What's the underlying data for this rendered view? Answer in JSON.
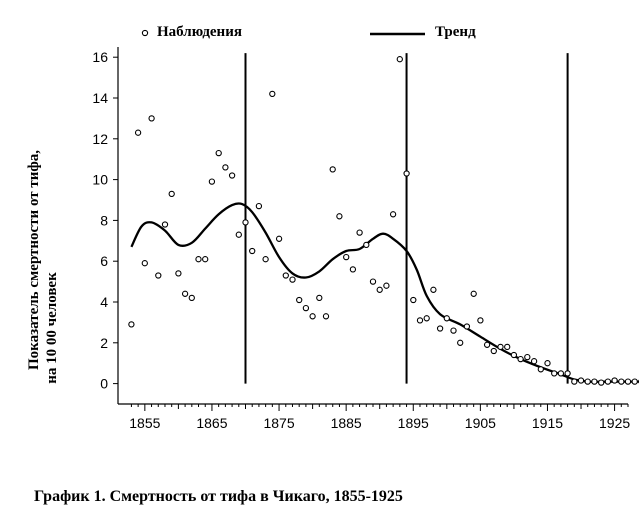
{
  "caption": "График 1. Смертность от тифа в Чикаго, 1855-1925",
  "chart_data": {
    "type": "scatter",
    "title": "",
    "xlabel": "",
    "ylabel_lines": [
      "Показатель смертности от тифа,",
      "на 10 00 человек"
    ],
    "xlim": [
      1851,
      1927
    ],
    "ylim": [
      -1,
      16.5
    ],
    "x_ticks": [
      1855,
      1865,
      1875,
      1885,
      1895,
      1905,
      1915,
      1925
    ],
    "y_ticks": [
      0,
      2,
      4,
      6,
      8,
      10,
      12,
      14,
      16
    ],
    "grid": false,
    "legend": {
      "placement": "top",
      "entries": [
        {
          "marker": "circle",
          "label": "Наблюдения"
        },
        {
          "marker": "line",
          "label": "Тренд"
        }
      ]
    },
    "vertical_lines_x": [
      1870,
      1894,
      1918
    ],
    "series": [
      {
        "name": "Наблюдения",
        "kind": "points",
        "points": [
          [
            1853,
            2.9
          ],
          [
            1854,
            12.3
          ],
          [
            1855,
            5.9
          ],
          [
            1856,
            13.0
          ],
          [
            1857,
            5.3
          ],
          [
            1858,
            7.8
          ],
          [
            1859,
            9.3
          ],
          [
            1860,
            5.4
          ],
          [
            1861,
            4.4
          ],
          [
            1862,
            4.2
          ],
          [
            1863,
            6.1
          ],
          [
            1864,
            6.1
          ],
          [
            1865,
            9.9
          ],
          [
            1866,
            11.3
          ],
          [
            1867,
            10.6
          ],
          [
            1868,
            10.2
          ],
          [
            1869,
            7.3
          ],
          [
            1870,
            7.9
          ],
          [
            1871,
            6.5
          ],
          [
            1872,
            8.7
          ],
          [
            1873,
            6.1
          ],
          [
            1874,
            14.2
          ],
          [
            1875,
            7.1
          ],
          [
            1876,
            5.3
          ],
          [
            1877,
            5.1
          ],
          [
            1878,
            4.1
          ],
          [
            1879,
            3.7
          ],
          [
            1880,
            3.3
          ],
          [
            1881,
            4.2
          ],
          [
            1882,
            3.3
          ],
          [
            1883,
            10.5
          ],
          [
            1884,
            8.2
          ],
          [
            1885,
            6.2
          ],
          [
            1886,
            5.6
          ],
          [
            1887,
            7.4
          ],
          [
            1888,
            6.8
          ],
          [
            1889,
            5.0
          ],
          [
            1890,
            4.6
          ],
          [
            1891,
            4.8
          ],
          [
            1892,
            8.3
          ],
          [
            1893,
            15.9
          ],
          [
            1894,
            10.3
          ],
          [
            1895,
            4.1
          ],
          [
            1896,
            3.1
          ],
          [
            1897,
            3.2
          ],
          [
            1898,
            4.6
          ],
          [
            1899,
            2.7
          ],
          [
            1900,
            3.2
          ],
          [
            1901,
            2.6
          ],
          [
            1902,
            2.0
          ],
          [
            1903,
            2.8
          ],
          [
            1904,
            4.4
          ],
          [
            1905,
            3.1
          ],
          [
            1906,
            1.9
          ],
          [
            1907,
            1.6
          ],
          [
            1908,
            1.8
          ],
          [
            1909,
            1.8
          ],
          [
            1910,
            1.4
          ],
          [
            1911,
            1.2
          ],
          [
            1912,
            1.3
          ],
          [
            1913,
            1.1
          ],
          [
            1914,
            0.7
          ],
          [
            1915,
            1.0
          ],
          [
            1916,
            0.5
          ],
          [
            1917,
            0.5
          ],
          [
            1918,
            0.5
          ],
          [
            1919,
            0.1
          ],
          [
            1920,
            0.15
          ],
          [
            1921,
            0.1
          ],
          [
            1922,
            0.1
          ],
          [
            1923,
            0.05
          ],
          [
            1924,
            0.1
          ],
          [
            1925,
            0.15
          ],
          [
            1926,
            0.1
          ],
          [
            1927,
            0.1
          ],
          [
            1928,
            0.1
          ],
          [
            1929,
            0.1
          ]
        ]
      },
      {
        "name": "Тренд",
        "kind": "line",
        "points": [
          [
            1853,
            6.7
          ],
          [
            1854.5,
            7.7
          ],
          [
            1856,
            7.9
          ],
          [
            1858,
            7.5
          ],
          [
            1860,
            6.8
          ],
          [
            1862,
            6.9
          ],
          [
            1864,
            7.6
          ],
          [
            1866,
            8.3
          ],
          [
            1868,
            8.75
          ],
          [
            1869.5,
            8.8
          ],
          [
            1871,
            8.4
          ],
          [
            1873,
            7.4
          ],
          [
            1875,
            6.2
          ],
          [
            1877,
            5.4
          ],
          [
            1879,
            5.2
          ],
          [
            1881,
            5.5
          ],
          [
            1883,
            6.1
          ],
          [
            1885,
            6.5
          ],
          [
            1887,
            6.6
          ],
          [
            1889,
            7.1
          ],
          [
            1890.5,
            7.35
          ],
          [
            1892,
            7.1
          ],
          [
            1894,
            6.5
          ],
          [
            1895.5,
            5.6
          ],
          [
            1897,
            4.3
          ],
          [
            1899,
            3.4
          ],
          [
            1902,
            2.9
          ],
          [
            1905,
            2.3
          ],
          [
            1908,
            1.7
          ],
          [
            1911,
            1.2
          ],
          [
            1914,
            0.8
          ],
          [
            1917,
            0.45
          ],
          [
            1919,
            0.2
          ],
          [
            1921,
            0.1
          ],
          [
            1925,
            0.1
          ],
          [
            1929,
            0.1
          ]
        ]
      }
    ]
  }
}
